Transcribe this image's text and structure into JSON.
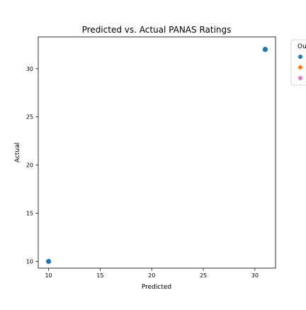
{
  "chart_data": {
    "type": "scatter",
    "title": "Predicted vs. Actual PANAS Ratings",
    "xlabel": "Predicted",
    "ylabel": "Actual",
    "xlim": [
      9,
      32
    ],
    "ylim": [
      9.3,
      33.3
    ],
    "xticks": [
      10,
      15,
      20,
      25,
      30
    ],
    "yticks": [
      10,
      15,
      20,
      25,
      30
    ],
    "grid": false,
    "series": [
      {
        "color": "#1f77b4",
        "points": [
          {
            "x": 10,
            "y": 10
          },
          {
            "x": 31,
            "y": 32
          }
        ]
      }
    ],
    "legend": {
      "placement": "outside-right",
      "title": "Ou",
      "entries": [
        {
          "label": "",
          "color": "#1f77b4"
        },
        {
          "label": "",
          "color": "#ff7f0e"
        },
        {
          "label": "",
          "color": "#e377c2"
        }
      ]
    }
  }
}
